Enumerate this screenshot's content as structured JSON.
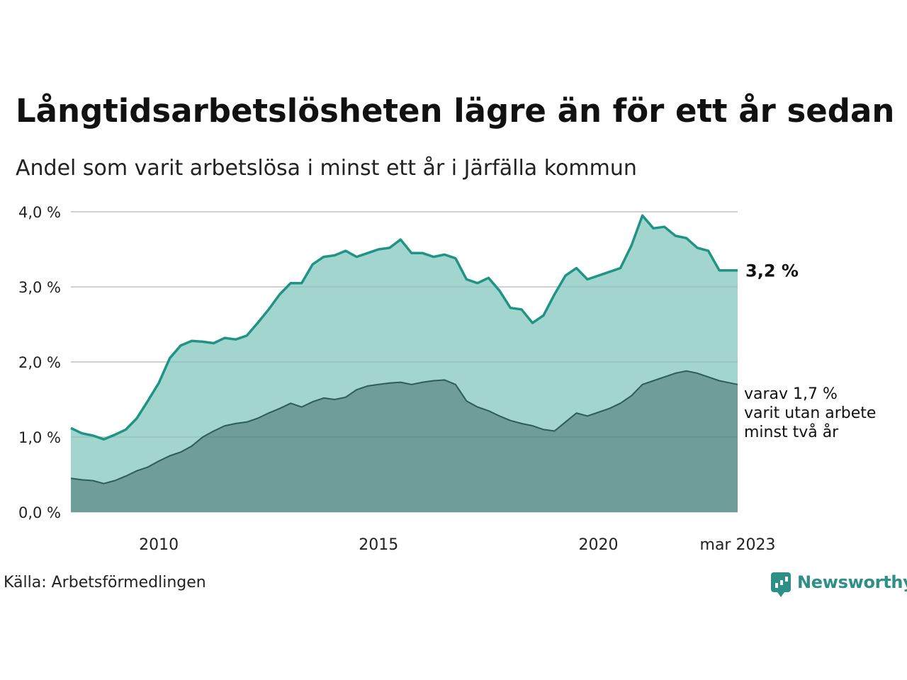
{
  "title": "Långtidsarbetslösheten lägre än för ett år sedan",
  "subtitle": "Andel som varit arbetslösa i minst ett år i Järfälla kommun",
  "source": "Källa: Arbetsförmedlingen",
  "brand": {
    "name": "Newsworthy",
    "icon": "newsworthy-logo-icon"
  },
  "labels": {
    "total_value": "3,2 %",
    "sub_lines": [
      "varav 1,7 %",
      "varit utan arbete",
      "minst två år"
    ]
  },
  "colors": {
    "total_fill": "#a3d5cf",
    "total_line": "#1f9485",
    "sub_fill": "#6f9d97",
    "sub_line": "#2e5c56",
    "grid": "#dddddd"
  },
  "chart_data": {
    "type": "area",
    "y_tick_labels": [
      "0,0 %",
      "1,0 %",
      "2,0 %",
      "3,0 %",
      "4,0 %"
    ],
    "y_ticks": [
      0,
      1,
      2,
      3,
      4
    ],
    "ylim": [
      0,
      4
    ],
    "x_tick_labels": [
      "2010",
      "2015",
      "2020",
      "mar 2023"
    ],
    "x_ticks": [
      "2010-01",
      "2015-01",
      "2020-01",
      "2023-03"
    ],
    "x_range": [
      "2008-01",
      "2023-03"
    ],
    "grid": true,
    "series": [
      {
        "values_total": [
          [
            "2008-01",
            1.12
          ],
          [
            "2008-04",
            1.05
          ],
          [
            "2008-07",
            1.02
          ],
          [
            "2008-10",
            0.97
          ],
          [
            "2009-01",
            1.03
          ],
          [
            "2009-04",
            1.1
          ],
          [
            "2009-07",
            1.25
          ],
          [
            "2009-10",
            1.48
          ],
          [
            "2010-01",
            1.72
          ],
          [
            "2010-04",
            2.05
          ],
          [
            "2010-07",
            2.22
          ],
          [
            "2010-10",
            2.28
          ],
          [
            "2011-01",
            2.27
          ],
          [
            "2011-04",
            2.25
          ],
          [
            "2011-07",
            2.32
          ],
          [
            "2011-10",
            2.3
          ],
          [
            "2012-01",
            2.35
          ],
          [
            "2012-04",
            2.52
          ],
          [
            "2012-07",
            2.7
          ],
          [
            "2012-10",
            2.9
          ],
          [
            "2013-01",
            3.05
          ],
          [
            "2013-04",
            3.05
          ],
          [
            "2013-07",
            3.3
          ],
          [
            "2013-10",
            3.4
          ],
          [
            "2014-01",
            3.42
          ],
          [
            "2014-04",
            3.48
          ],
          [
            "2014-07",
            3.4
          ],
          [
            "2014-10",
            3.45
          ],
          [
            "2015-01",
            3.5
          ],
          [
            "2015-04",
            3.52
          ],
          [
            "2015-07",
            3.63
          ],
          [
            "2015-10",
            3.45
          ],
          [
            "2016-01",
            3.45
          ],
          [
            "2016-04",
            3.4
          ],
          [
            "2016-07",
            3.43
          ],
          [
            "2016-10",
            3.38
          ],
          [
            "2017-01",
            3.1
          ],
          [
            "2017-04",
            3.05
          ],
          [
            "2017-07",
            3.12
          ],
          [
            "2017-10",
            2.95
          ],
          [
            "2018-01",
            2.72
          ],
          [
            "2018-04",
            2.7
          ],
          [
            "2018-07",
            2.52
          ],
          [
            "2018-10",
            2.62
          ],
          [
            "2019-01",
            2.9
          ],
          [
            "2019-04",
            3.15
          ],
          [
            "2019-07",
            3.25
          ],
          [
            "2019-10",
            3.1
          ],
          [
            "2020-01",
            3.15
          ],
          [
            "2020-04",
            3.2
          ],
          [
            "2020-07",
            3.25
          ],
          [
            "2020-10",
            3.55
          ],
          [
            "2021-01",
            3.95
          ],
          [
            "2021-04",
            3.78
          ],
          [
            "2021-07",
            3.8
          ],
          [
            "2021-10",
            3.68
          ],
          [
            "2022-01",
            3.65
          ],
          [
            "2022-04",
            3.52
          ],
          [
            "2022-07",
            3.48
          ],
          [
            "2022-10",
            3.22
          ],
          [
            "2023-01",
            3.22
          ],
          [
            "2023-03",
            3.22
          ]
        ],
        "values_sub": [
          [
            "2008-01",
            0.45
          ],
          [
            "2008-04",
            0.43
          ],
          [
            "2008-07",
            0.42
          ],
          [
            "2008-10",
            0.38
          ],
          [
            "2009-01",
            0.42
          ],
          [
            "2009-04",
            0.48
          ],
          [
            "2009-07",
            0.55
          ],
          [
            "2009-10",
            0.6
          ],
          [
            "2010-01",
            0.68
          ],
          [
            "2010-04",
            0.75
          ],
          [
            "2010-07",
            0.8
          ],
          [
            "2010-10",
            0.88
          ],
          [
            "2011-01",
            1.0
          ],
          [
            "2011-04",
            1.08
          ],
          [
            "2011-07",
            1.15
          ],
          [
            "2011-10",
            1.18
          ],
          [
            "2012-01",
            1.2
          ],
          [
            "2012-04",
            1.25
          ],
          [
            "2012-07",
            1.32
          ],
          [
            "2012-10",
            1.38
          ],
          [
            "2013-01",
            1.45
          ],
          [
            "2013-04",
            1.4
          ],
          [
            "2013-07",
            1.47
          ],
          [
            "2013-10",
            1.52
          ],
          [
            "2014-01",
            1.5
          ],
          [
            "2014-04",
            1.53
          ],
          [
            "2014-07",
            1.63
          ],
          [
            "2014-10",
            1.68
          ],
          [
            "2015-01",
            1.7
          ],
          [
            "2015-04",
            1.72
          ],
          [
            "2015-07",
            1.73
          ],
          [
            "2015-10",
            1.7
          ],
          [
            "2016-01",
            1.73
          ],
          [
            "2016-04",
            1.75
          ],
          [
            "2016-07",
            1.76
          ],
          [
            "2016-10",
            1.7
          ],
          [
            "2017-01",
            1.48
          ],
          [
            "2017-04",
            1.4
          ],
          [
            "2017-07",
            1.35
          ],
          [
            "2017-10",
            1.28
          ],
          [
            "2018-01",
            1.22
          ],
          [
            "2018-04",
            1.18
          ],
          [
            "2018-07",
            1.15
          ],
          [
            "2018-10",
            1.1
          ],
          [
            "2019-01",
            1.08
          ],
          [
            "2019-04",
            1.2
          ],
          [
            "2019-07",
            1.32
          ],
          [
            "2019-10",
            1.28
          ],
          [
            "2020-01",
            1.33
          ],
          [
            "2020-04",
            1.38
          ],
          [
            "2020-07",
            1.45
          ],
          [
            "2020-10",
            1.55
          ],
          [
            "2021-01",
            1.7
          ],
          [
            "2021-04",
            1.75
          ],
          [
            "2021-07",
            1.8
          ],
          [
            "2021-10",
            1.85
          ],
          [
            "2022-01",
            1.88
          ],
          [
            "2022-04",
            1.85
          ],
          [
            "2022-07",
            1.8
          ],
          [
            "2022-10",
            1.75
          ],
          [
            "2023-01",
            1.72
          ],
          [
            "2023-03",
            1.7
          ]
        ]
      }
    ]
  }
}
